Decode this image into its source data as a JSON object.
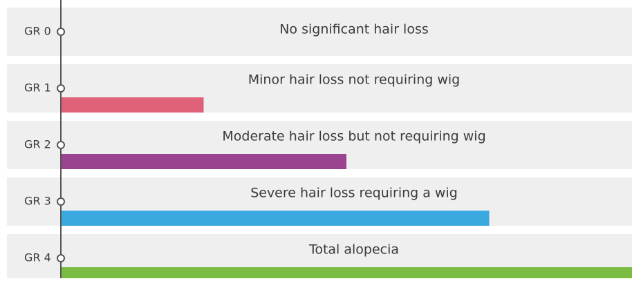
{
  "rows": [
    {
      "label": "GR 0",
      "description": "No significant hair loss",
      "color": null
    },
    {
      "label": "GR 1",
      "description": "Minor hair loss not requiring wig",
      "color": "#e0627a"
    },
    {
      "label": "GR 2",
      "description": "Moderate hair loss but not requiring wig",
      "color": "#9a4490"
    },
    {
      "label": "GR 3",
      "description": "Severe hair loss requiring a wig",
      "color": "#3aa9df"
    },
    {
      "label": "GR 4",
      "description": "Total alopecia",
      "color": "#7bbd43"
    }
  ]
}
